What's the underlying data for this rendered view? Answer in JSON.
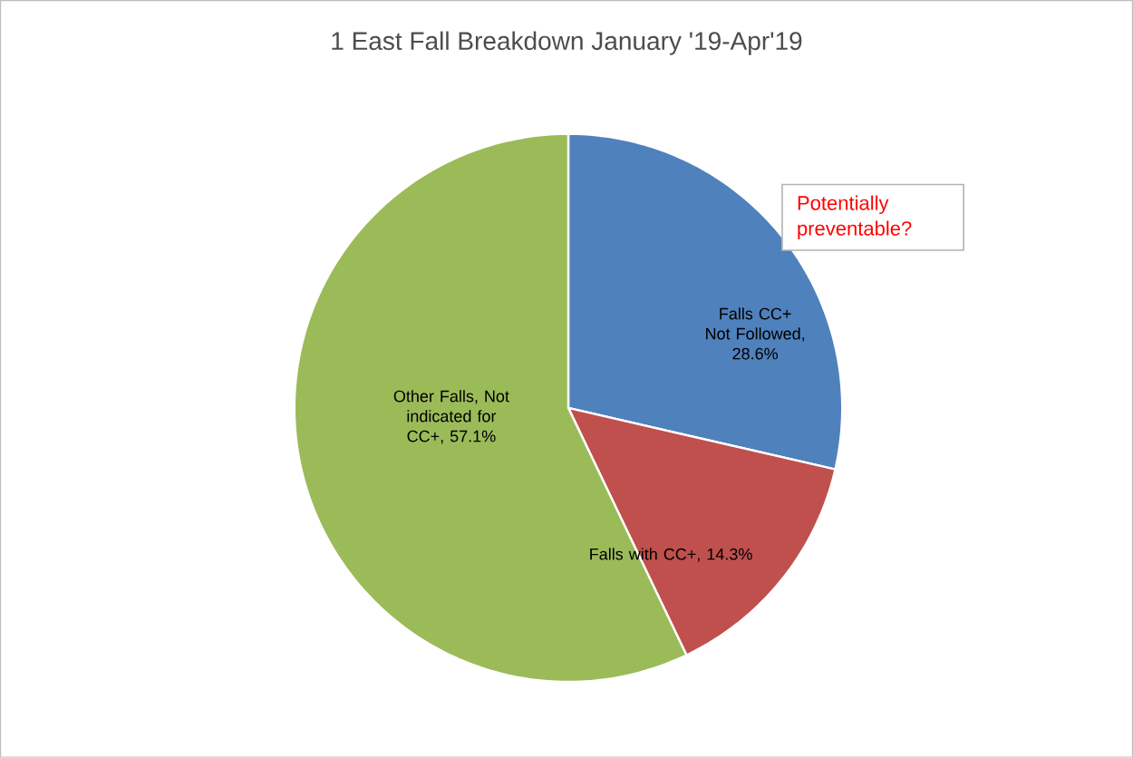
{
  "chart_data": {
    "type": "pie",
    "title": "1 East Fall Breakdown January '19-Apr'19",
    "categories": [
      "Falls CC+ Not Followed",
      "Falls with CC+",
      "Other Falls, Not indicated for CC+"
    ],
    "values": [
      28.6,
      14.3,
      57.1
    ],
    "value_labels": [
      ", 28.6%",
      ", 14.3%",
      ", 57.1%"
    ],
    "colors": [
      "#4f81bd",
      "#c0504d",
      "#9bbb59"
    ],
    "annotations": [
      "Potentially preventable?"
    ]
  }
}
